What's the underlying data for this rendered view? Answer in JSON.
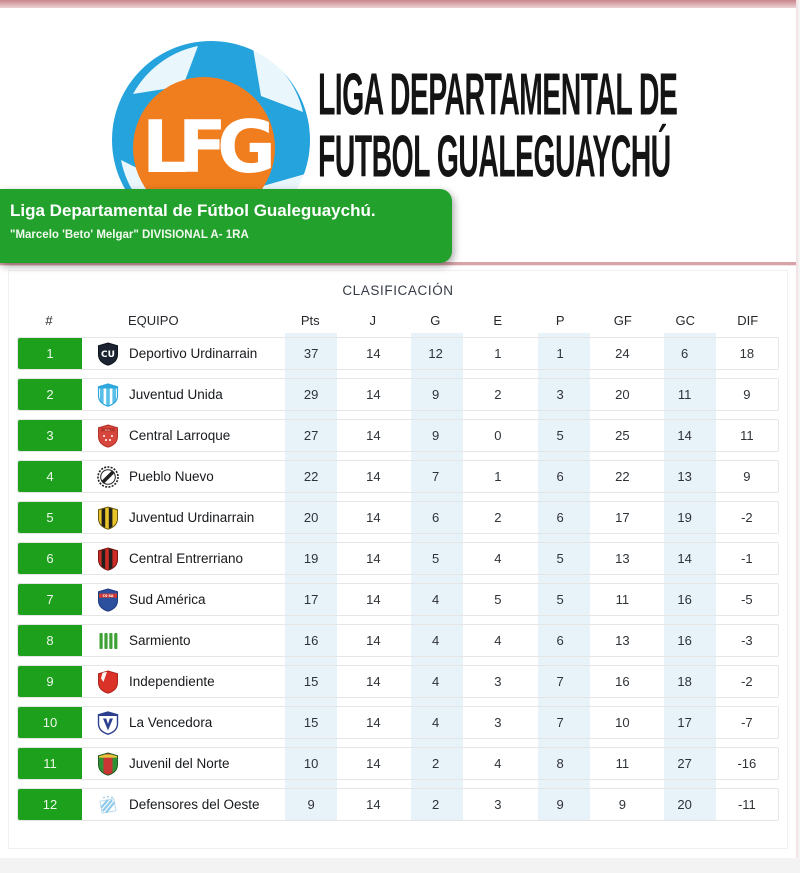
{
  "masthead": {
    "logo_monogram": "LFG",
    "title_line1": "LIGA DEPARTAMENTAL DE",
    "title_line2": "FUTBOL GUALEGUAYCHÚ"
  },
  "banner": {
    "title": "Liga Departamental de Fútbol Gualeguaychú.",
    "subtitle": "\"Marcelo 'Beto' Melgar\" DIVISIONAL A- 1RA",
    "background_color": "#22a12c"
  },
  "standings": {
    "section_title": "CLASIFICACIÓN",
    "columns": [
      "#",
      "EQUIPO",
      "Pts",
      "J",
      "G",
      "E",
      "P",
      "GF",
      "GC",
      "DIF"
    ],
    "highlighted_columns": [
      "Pts",
      "G",
      "P",
      "GC"
    ],
    "accent_green": "#1da11d",
    "stripe_blue": "#e8f2f9",
    "rows": [
      {
        "pos": 1,
        "team": "Deportivo Urdinarrain",
        "badge": "deportivo-urdinarrain",
        "stats": [
          37,
          14,
          12,
          1,
          1,
          24,
          6,
          18
        ]
      },
      {
        "pos": 2,
        "team": "Juventud Unida",
        "badge": "juventud-unida",
        "stats": [
          29,
          14,
          9,
          2,
          3,
          20,
          11,
          9
        ]
      },
      {
        "pos": 3,
        "team": "Central Larroque",
        "badge": "central-larroque",
        "stats": [
          27,
          14,
          9,
          0,
          5,
          25,
          14,
          11
        ]
      },
      {
        "pos": 4,
        "team": "Pueblo Nuevo",
        "badge": "pueblo-nuevo",
        "stats": [
          22,
          14,
          7,
          1,
          6,
          22,
          13,
          9
        ]
      },
      {
        "pos": 5,
        "team": "Juventud Urdinarrain",
        "badge": "juventud-urdinarrain",
        "stats": [
          20,
          14,
          6,
          2,
          6,
          17,
          19,
          -2
        ]
      },
      {
        "pos": 6,
        "team": "Central Entrerriano",
        "badge": "central-entrerriano",
        "stats": [
          19,
          14,
          5,
          4,
          5,
          13,
          14,
          -1
        ]
      },
      {
        "pos": 7,
        "team": "Sud América",
        "badge": "sud-america",
        "stats": [
          17,
          14,
          4,
          5,
          5,
          11,
          16,
          -5
        ]
      },
      {
        "pos": 8,
        "team": "Sarmiento",
        "badge": "sarmiento",
        "stats": [
          16,
          14,
          4,
          4,
          6,
          13,
          16,
          -3
        ]
      },
      {
        "pos": 9,
        "team": "Independiente",
        "badge": "independiente",
        "stats": [
          15,
          14,
          4,
          3,
          7,
          16,
          18,
          -2
        ]
      },
      {
        "pos": 10,
        "team": "La Vencedora",
        "badge": "la-vencedora",
        "stats": [
          15,
          14,
          4,
          3,
          7,
          10,
          17,
          -7
        ]
      },
      {
        "pos": 11,
        "team": "Juvenil del Norte",
        "badge": "juvenil-del-norte",
        "stats": [
          10,
          14,
          2,
          4,
          8,
          11,
          27,
          -16
        ]
      },
      {
        "pos": 12,
        "team": "Defensores del Oeste",
        "badge": "defensores-del-oeste",
        "stats": [
          9,
          14,
          2,
          3,
          9,
          9,
          20,
          -11
        ]
      }
    ]
  }
}
